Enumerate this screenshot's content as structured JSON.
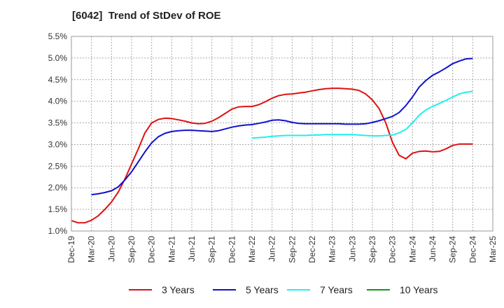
{
  "title": "[6042]  Trend of StDev of ROE",
  "chart_data": {
    "type": "line",
    "title": "[6042]  Trend of StDev of ROE",
    "xlabel": "",
    "ylabel": "",
    "x_ticks": [
      "Dec-19",
      "Mar-20",
      "Jun-20",
      "Sep-20",
      "Dec-20",
      "Mar-21",
      "Jun-21",
      "Sep-21",
      "Dec-21",
      "Mar-22",
      "Jun-22",
      "Sep-22",
      "Dec-22",
      "Mar-23",
      "Jun-23",
      "Sep-23",
      "Dec-23",
      "Mar-24",
      "Jun-24",
      "Sep-24",
      "Dec-24",
      "Mar-25"
    ],
    "y_ticks": [
      "1.0%",
      "1.5%",
      "2.0%",
      "2.5%",
      "3.0%",
      "3.5%",
      "4.0%",
      "4.5%",
      "5.0%",
      "5.5%"
    ],
    "ylim": [
      1.0,
      5.5
    ],
    "grid": true,
    "legend_position": "bottom",
    "series": [
      {
        "name": "3 Years",
        "color": "#dd1111",
        "x": [
          "Dec-19",
          "Jan-20",
          "Feb-20",
          "Mar-20",
          "Apr-20",
          "May-20",
          "Jun-20",
          "Jul-20",
          "Aug-20",
          "Sep-20",
          "Oct-20",
          "Nov-20",
          "Dec-20",
          "Jan-21",
          "Feb-21",
          "Mar-21",
          "Apr-21",
          "May-21",
          "Jun-21",
          "Jul-21",
          "Aug-21",
          "Sep-21",
          "Oct-21",
          "Nov-21",
          "Dec-21",
          "Jan-22",
          "Feb-22",
          "Mar-22",
          "Apr-22",
          "May-22",
          "Jun-22",
          "Jul-22",
          "Aug-22",
          "Sep-22",
          "Oct-22",
          "Nov-22",
          "Dec-22",
          "Jan-23",
          "Feb-23",
          "Mar-23",
          "Apr-23",
          "May-23",
          "Jun-23",
          "Jul-23",
          "Aug-23",
          "Sep-23",
          "Oct-23",
          "Nov-23",
          "Dec-23",
          "Jan-24",
          "Feb-24",
          "Mar-24",
          "Apr-24",
          "May-24",
          "Jun-24",
          "Jul-24",
          "Aug-24",
          "Sep-24",
          "Oct-24",
          "Nov-24",
          "Dec-24"
        ],
        "values": [
          1.24,
          1.19,
          1.19,
          1.25,
          1.35,
          1.5,
          1.67,
          1.9,
          2.2,
          2.55,
          2.9,
          3.27,
          3.5,
          3.58,
          3.61,
          3.6,
          3.57,
          3.54,
          3.5,
          3.48,
          3.49,
          3.54,
          3.62,
          3.72,
          3.82,
          3.87,
          3.88,
          3.88,
          3.92,
          3.99,
          4.07,
          4.13,
          4.16,
          4.17,
          4.19,
          4.21,
          4.24,
          4.27,
          4.29,
          4.3,
          4.3,
          4.29,
          4.28,
          4.25,
          4.17,
          4.03,
          3.83,
          3.5,
          3.05,
          2.75,
          2.67,
          2.8,
          2.84,
          2.85,
          2.83,
          2.84,
          2.9,
          2.98,
          3.01,
          3.01,
          3.01
        ]
      },
      {
        "name": "5 Years",
        "color": "#1111cc",
        "x": [
          "Mar-20",
          "Apr-20",
          "May-20",
          "Jun-20",
          "Jul-20",
          "Aug-20",
          "Sep-20",
          "Oct-20",
          "Nov-20",
          "Dec-20",
          "Jan-21",
          "Feb-21",
          "Mar-21",
          "Apr-21",
          "May-21",
          "Jun-21",
          "Jul-21",
          "Aug-21",
          "Sep-21",
          "Oct-21",
          "Nov-21",
          "Dec-21",
          "Jan-22",
          "Feb-22",
          "Mar-22",
          "Apr-22",
          "May-22",
          "Jun-22",
          "Jul-22",
          "Aug-22",
          "Sep-22",
          "Oct-22",
          "Nov-22",
          "Dec-22",
          "Jan-23",
          "Feb-23",
          "Mar-23",
          "Apr-23",
          "May-23",
          "Jun-23",
          "Jul-23",
          "Aug-23",
          "Sep-23",
          "Oct-23",
          "Nov-23",
          "Dec-23",
          "Jan-24",
          "Feb-24",
          "Mar-24",
          "Apr-24",
          "May-24",
          "Jun-24",
          "Jul-24",
          "Aug-24",
          "Sep-24",
          "Oct-24",
          "Nov-24",
          "Dec-24"
        ],
        "values": [
          1.84,
          1.86,
          1.89,
          1.93,
          2.02,
          2.18,
          2.37,
          2.6,
          2.83,
          3.04,
          3.18,
          3.26,
          3.3,
          3.32,
          3.33,
          3.33,
          3.32,
          3.31,
          3.3,
          3.32,
          3.36,
          3.4,
          3.43,
          3.45,
          3.46,
          3.49,
          3.52,
          3.56,
          3.57,
          3.55,
          3.51,
          3.49,
          3.48,
          3.48,
          3.48,
          3.48,
          3.48,
          3.48,
          3.47,
          3.47,
          3.47,
          3.48,
          3.51,
          3.55,
          3.6,
          3.65,
          3.74,
          3.9,
          4.1,
          4.33,
          4.48,
          4.6,
          4.68,
          4.77,
          4.87,
          4.93,
          4.98,
          4.99
        ]
      },
      {
        "name": "7 Years",
        "color": "#22eeee",
        "x": [
          "Mar-22",
          "Apr-22",
          "May-22",
          "Jun-22",
          "Jul-22",
          "Aug-22",
          "Sep-22",
          "Oct-22",
          "Nov-22",
          "Dec-22",
          "Jan-23",
          "Feb-23",
          "Mar-23",
          "Apr-23",
          "May-23",
          "Jun-23",
          "Jul-23",
          "Aug-23",
          "Sep-23",
          "Oct-23",
          "Nov-23",
          "Dec-23",
          "Jan-24",
          "Feb-24",
          "Mar-24",
          "Apr-24",
          "May-24",
          "Jun-24",
          "Jul-24",
          "Aug-24",
          "Sep-24",
          "Oct-24",
          "Nov-24",
          "Dec-24"
        ],
        "values": [
          3.15,
          3.16,
          3.17,
          3.19,
          3.2,
          3.21,
          3.21,
          3.21,
          3.21,
          3.22,
          3.22,
          3.23,
          3.23,
          3.23,
          3.23,
          3.23,
          3.22,
          3.21,
          3.2,
          3.2,
          3.21,
          3.22,
          3.27,
          3.35,
          3.5,
          3.68,
          3.8,
          3.88,
          3.95,
          4.02,
          4.1,
          4.17,
          4.21,
          4.23
        ]
      },
      {
        "name": "10 Years",
        "color": "#119911",
        "x": [],
        "values": []
      }
    ]
  }
}
